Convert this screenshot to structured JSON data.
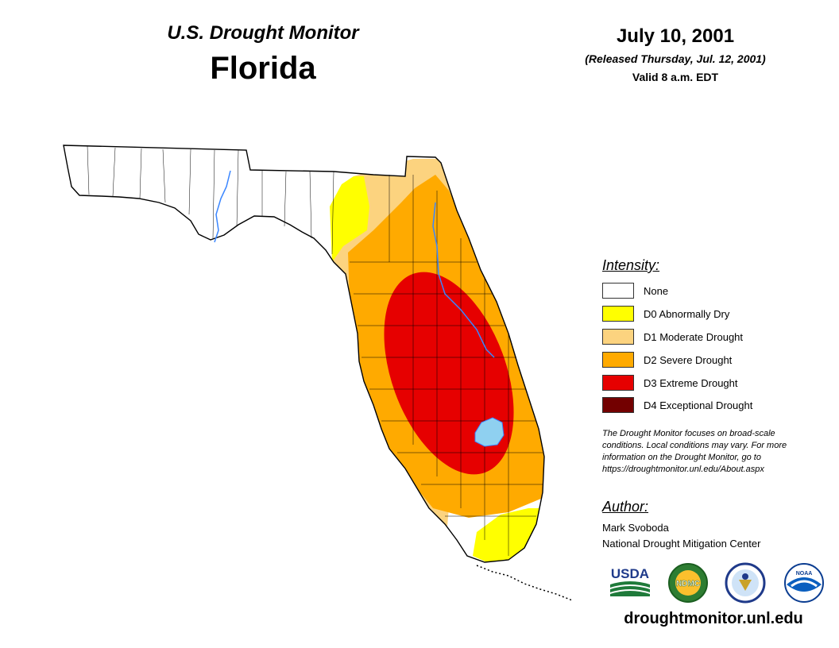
{
  "header": {
    "subtitle": "U.S. Drought Monitor",
    "state": "Florida",
    "date": "July 10, 2001",
    "released": "(Released Thursday, Jul. 12, 2001)",
    "valid": "Valid 8 a.m. EDT"
  },
  "colors": {
    "none": "#ffffff",
    "d0": "#ffff00",
    "d1": "#fcd37f",
    "d2": "#ffaa00",
    "d3": "#e60000",
    "d4": "#730000",
    "water": "#8fd0f0",
    "river": "#3a86ff"
  },
  "legend": {
    "title": "Intensity:",
    "items": [
      {
        "label": "None",
        "color": "#ffffff"
      },
      {
        "label": "D0 Abnormally Dry",
        "color": "#ffff00"
      },
      {
        "label": "D1 Moderate Drought",
        "color": "#fcd37f"
      },
      {
        "label": "D2 Severe Drought",
        "color": "#ffaa00"
      },
      {
        "label": "D3 Extreme Drought",
        "color": "#e60000"
      },
      {
        "label": "D4 Exceptional Drought",
        "color": "#730000"
      }
    ]
  },
  "note": {
    "line1": "The Drought Monitor focuses on broad-scale",
    "line2": "conditions. Local conditions may vary. For more",
    "line3": "information on the Drought Monitor, go to",
    "line4": "https://droughtmonitor.unl.edu/About.aspx"
  },
  "author": {
    "title": "Author:",
    "name": "Mark Svoboda",
    "org": "National Drought Mitigation Center"
  },
  "logos": {
    "usda": "USDA",
    "ndmc": "NDMC",
    "noaa": "NOAA"
  },
  "footer": {
    "url": "droughtmonitor.unl.edu"
  }
}
